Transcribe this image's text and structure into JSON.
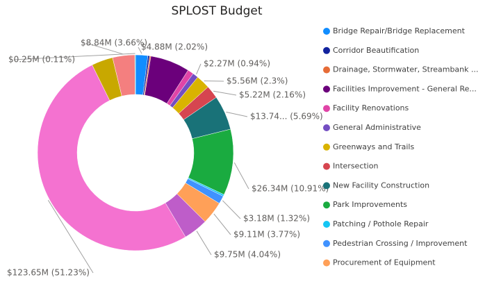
{
  "chart_data": {
    "type": "donut",
    "title": "SPLOST Budget",
    "categories": [
      "Bridge Repair/Bridge Replacement",
      "Corridor Beautification",
      "Drainage, Stormwater, Streambank ...",
      "Facilities Improvement - General Re...",
      "Facility Renovations",
      "General Administrative",
      "Greenways and Trails",
      "Intersection",
      "New Facility Construction",
      "Park Improvements",
      "Patching / Pothole Repair",
      "Pedestrian Crossing / Improvement",
      "Procurement of Equipment",
      null,
      null,
      null,
      null,
      null
    ],
    "values": [
      4.88,
      0.7,
      0.5,
      15.7,
      2.4,
      2.27,
      5.56,
      5.22,
      13.74,
      26.34,
      0.7,
      3.18,
      9.11,
      9.75,
      123.65,
      8.5,
      8.84,
      0.25
    ],
    "value_labels": [
      "$4.88M (2.02%)",
      null,
      null,
      null,
      null,
      "$2.27M (0.94%)",
      "$5.56M (2.3%)",
      "$5.22M (2.16%)",
      "$13.74... (5.69%)",
      "$26.34M (10.91%)",
      null,
      "$3.18M (1.32%)",
      "$9.11M (3.77%)",
      "$9.75M (4.04%)",
      "$123.65M (51.23%)",
      null,
      "$8.84M (3.66%)",
      "$0.25M (0.11%)"
    ],
    "colors": [
      "#118DFF",
      "#12239E",
      "#E66C37",
      "#6B007B",
      "#E044A7",
      "#744EC2",
      "#D9B300",
      "#D64550",
      "#197278",
      "#1AAB40",
      "#15C6F4",
      "#4092FF",
      "#FFA058",
      "#BE5DC9",
      "#F472D0",
      "#C8A800",
      "#F47F7F",
      "#1BB5A5"
    ]
  }
}
